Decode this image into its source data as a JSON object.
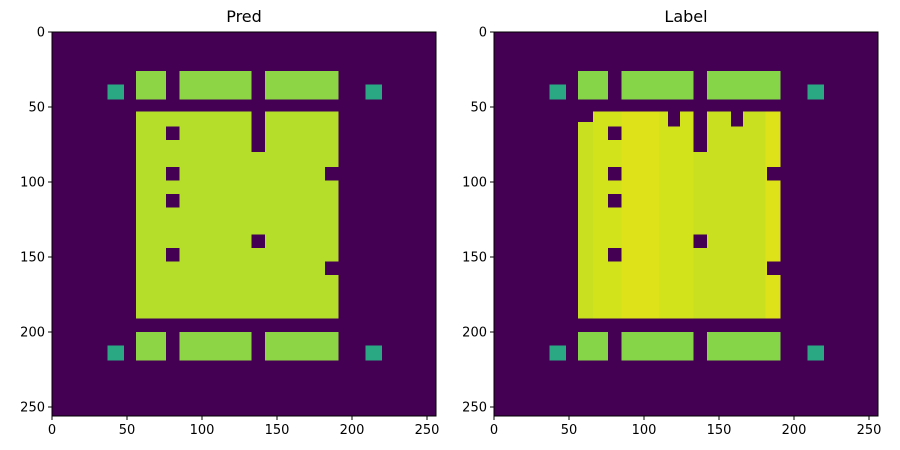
{
  "chart_data": [
    {
      "type": "heatmap",
      "title": "Pred",
      "xlim": [
        0,
        256
      ],
      "ylim": [
        256,
        0
      ],
      "xticks": [
        0,
        50,
        100,
        150,
        200,
        250
      ],
      "yticks": [
        0,
        50,
        100,
        150,
        200,
        250
      ],
      "xtick_labels": [
        "0",
        "50",
        "100",
        "150",
        "200",
        "250"
      ],
      "ytick_labels": [
        "0",
        "50",
        "100",
        "150",
        "200",
        "250"
      ],
      "colormap": "viridis",
      "background_color": "#440154",
      "regions": [
        {
          "name": "top-small-left",
          "x0": 37,
          "x1": 48,
          "y0": 35,
          "y1": 45,
          "color": "#2aa884"
        },
        {
          "name": "top-block-1",
          "x0": 56,
          "x1": 76,
          "y0": 26,
          "y1": 45,
          "color": "#8ed545"
        },
        {
          "name": "top-block-2",
          "x0": 85,
          "x1": 133,
          "y0": 26,
          "y1": 45,
          "color": "#8ed545"
        },
        {
          "name": "top-block-3",
          "x0": 142,
          "x1": 191,
          "y0": 26,
          "y1": 45,
          "color": "#8ed545"
        },
        {
          "name": "top-small-right",
          "x0": 209,
          "x1": 220,
          "y0": 35,
          "y1": 45,
          "color": "#2aa884"
        },
        {
          "name": "main-left",
          "x0": 56,
          "x1": 133,
          "y0": 53,
          "y1": 191,
          "color": "#b5de2b"
        },
        {
          "name": "main-mid",
          "x0": 133,
          "x1": 142,
          "y0": 80,
          "y1": 191,
          "color": "#b5de2b"
        },
        {
          "name": "main-right",
          "x0": 142,
          "x1": 191,
          "y0": 53,
          "y1": 191,
          "color": "#b5de2b"
        },
        {
          "name": "bottom-small-left",
          "x0": 37,
          "x1": 48,
          "y0": 209,
          "y1": 219,
          "color": "#2aa884"
        },
        {
          "name": "bottom-block-1",
          "x0": 56,
          "x1": 76,
          "y0": 200,
          "y1": 219,
          "color": "#8ed545"
        },
        {
          "name": "bottom-block-2",
          "x0": 85,
          "x1": 133,
          "y0": 200,
          "y1": 219,
          "color": "#8ed545"
        },
        {
          "name": "bottom-block-3",
          "x0": 142,
          "x1": 191,
          "y0": 200,
          "y1": 219,
          "color": "#8ed545"
        },
        {
          "name": "bottom-small-right",
          "x0": 209,
          "x1": 220,
          "y0": 209,
          "y1": 219,
          "color": "#2aa884"
        }
      ],
      "holes": [
        {
          "x0": 76,
          "x1": 85,
          "y0": 63,
          "y1": 72
        },
        {
          "x0": 76,
          "x1": 85,
          "y0": 90,
          "y1": 99
        },
        {
          "x0": 76,
          "x1": 85,
          "y0": 108,
          "y1": 117
        },
        {
          "x0": 76,
          "x1": 85,
          "y0": 144,
          "y1": 153
        },
        {
          "x0": 133,
          "x1": 142,
          "y0": 135,
          "y1": 144
        },
        {
          "x0": 182,
          "x1": 191,
          "y0": 90,
          "y1": 99
        },
        {
          "x0": 182,
          "x1": 191,
          "y0": 153,
          "y1": 162
        }
      ]
    },
    {
      "type": "heatmap",
      "title": "Label",
      "xlim": [
        0,
        256
      ],
      "ylim": [
        256,
        0
      ],
      "xticks": [
        0,
        50,
        100,
        150,
        200,
        250
      ],
      "yticks": [
        0,
        50,
        100,
        150,
        200,
        250
      ],
      "xtick_labels": [
        "0",
        "50",
        "100",
        "150",
        "200",
        "250"
      ],
      "ytick_labels": [
        "0",
        "50",
        "100",
        "150",
        "200",
        "250"
      ],
      "colormap": "viridis",
      "background_color": "#440154",
      "regions": [
        {
          "name": "top-small-left",
          "x0": 37,
          "x1": 48,
          "y0": 35,
          "y1": 45,
          "color": "#2aa884"
        },
        {
          "name": "top-block-1",
          "x0": 56,
          "x1": 76,
          "y0": 26,
          "y1": 45,
          "color": "#86d549"
        },
        {
          "name": "top-block-2",
          "x0": 85,
          "x1": 133,
          "y0": 26,
          "y1": 45,
          "color": "#86d549"
        },
        {
          "name": "top-block-3",
          "x0": 142,
          "x1": 191,
          "y0": 26,
          "y1": 45,
          "color": "#86d549"
        },
        {
          "name": "top-small-right",
          "x0": 209,
          "x1": 220,
          "y0": 35,
          "y1": 45,
          "color": "#2aa884"
        },
        {
          "name": "main-col-1",
          "x0": 56,
          "x1": 66,
          "y0": 60,
          "y1": 191,
          "color": "#c8e020"
        },
        {
          "name": "main-col-2",
          "x0": 66,
          "x1": 85,
          "y0": 53,
          "y1": 191,
          "color": "#d2e21b"
        },
        {
          "name": "main-col-3",
          "x0": 85,
          "x1": 110,
          "y0": 53,
          "y1": 191,
          "color": "#dde318"
        },
        {
          "name": "main-col-4",
          "x0": 110,
          "x1": 133,
          "y0": 53,
          "y1": 191,
          "color": "#d2e21b"
        },
        {
          "name": "main-col-5",
          "x0": 133,
          "x1": 142,
          "y0": 80,
          "y1": 191,
          "color": "#c8e020"
        },
        {
          "name": "main-col-6",
          "x0": 142,
          "x1": 181,
          "y0": 53,
          "y1": 191,
          "color": "#c8e020"
        },
        {
          "name": "main-col-7",
          "x0": 181,
          "x1": 191,
          "y0": 53,
          "y1": 191,
          "color": "#dde318"
        },
        {
          "name": "bottom-small-left",
          "x0": 37,
          "x1": 48,
          "y0": 209,
          "y1": 219,
          "color": "#2aa884"
        },
        {
          "name": "bottom-block-1",
          "x0": 56,
          "x1": 76,
          "y0": 200,
          "y1": 219,
          "color": "#86d549"
        },
        {
          "name": "bottom-block-2",
          "x0": 85,
          "x1": 133,
          "y0": 200,
          "y1": 219,
          "color": "#86d549"
        },
        {
          "name": "bottom-block-3",
          "x0": 142,
          "x1": 191,
          "y0": 200,
          "y1": 219,
          "color": "#86d549"
        },
        {
          "name": "bottom-small-right",
          "x0": 209,
          "x1": 220,
          "y0": 209,
          "y1": 219,
          "color": "#2aa884"
        }
      ],
      "holes": [
        {
          "x0": 56,
          "x1": 66,
          "y0": 53,
          "y1": 60
        },
        {
          "x0": 116,
          "x1": 124,
          "y0": 53,
          "y1": 63
        },
        {
          "x0": 158,
          "x1": 166,
          "y0": 53,
          "y1": 63
        },
        {
          "x0": 76,
          "x1": 85,
          "y0": 63,
          "y1": 72
        },
        {
          "x0": 76,
          "x1": 85,
          "y0": 90,
          "y1": 99
        },
        {
          "x0": 76,
          "x1": 85,
          "y0": 108,
          "y1": 117
        },
        {
          "x0": 76,
          "x1": 85,
          "y0": 144,
          "y1": 153
        },
        {
          "x0": 133,
          "x1": 142,
          "y0": 135,
          "y1": 144
        },
        {
          "x0": 182,
          "x1": 191,
          "y0": 90,
          "y1": 99
        },
        {
          "x0": 182,
          "x1": 191,
          "y0": 153,
          "y1": 162
        }
      ]
    }
  ]
}
